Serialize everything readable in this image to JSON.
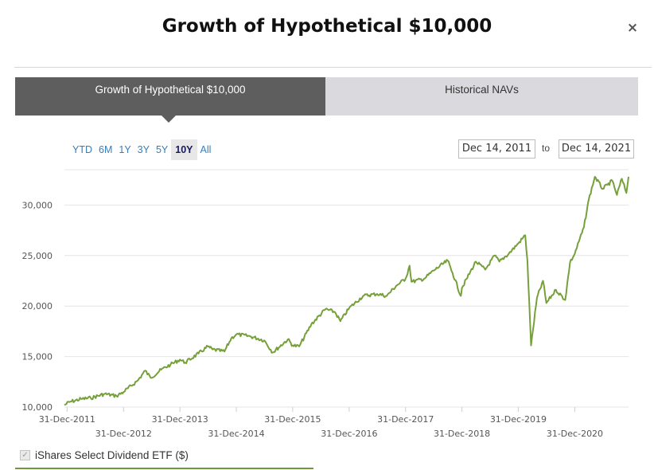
{
  "modal": {
    "title": "Growth of Hypothetical $10,000",
    "close_symbol": "×"
  },
  "tabs": [
    {
      "label": "Growth of Hypothetical $10,000",
      "active": true
    },
    {
      "label": "Historical NAVs",
      "active": false
    }
  ],
  "ranges": [
    "YTD",
    "6M",
    "1Y",
    "3Y",
    "5Y",
    "10Y",
    "All"
  ],
  "active_range": "10Y",
  "date_range": {
    "from": "Dec 14, 2011",
    "to_label": "to",
    "to": "Dec 14, 2021"
  },
  "legend": {
    "label": "iShares Select Dividend ETF ($)",
    "checked": true
  },
  "chart_data": {
    "type": "line",
    "x_axis_type": "date",
    "xlim": [
      "2011-12-14",
      "2021-12-14"
    ],
    "ylim": [
      10000,
      33500
    ],
    "grid": true,
    "y_ticks": [
      10000,
      15000,
      20000,
      25000,
      30000
    ],
    "y_tick_labels": [
      "10,000",
      "15,000",
      "20,000",
      "25,000",
      "30,000"
    ],
    "x_ticks": [
      "2011-12-31",
      "2012-12-31",
      "2013-12-31",
      "2014-12-31",
      "2015-12-31",
      "2016-12-31",
      "2017-12-31",
      "2018-12-31",
      "2019-12-31",
      "2020-12-31"
    ],
    "x_tick_labels": [
      "31-Dec-2011",
      "31-Dec-2012",
      "31-Dec-2013",
      "31-Dec-2014",
      "31-Dec-2015",
      "31-Dec-2016",
      "31-Dec-2017",
      "31-Dec-2018",
      "31-Dec-2019",
      "31-Dec-2020"
    ],
    "line_color": "#76a03a",
    "series": [
      {
        "name": "iShares Select Dividend ETF ($)",
        "points": [
          [
            "2011-12-14",
            10200
          ],
          [
            "2012-01-15",
            10500
          ],
          [
            "2012-03-31",
            10800
          ],
          [
            "2012-06-01",
            10900
          ],
          [
            "2012-08-31",
            11300
          ],
          [
            "2012-11-15",
            11100
          ],
          [
            "2012-12-31",
            11500
          ],
          [
            "2013-03-31",
            12600
          ],
          [
            "2013-05-20",
            13600
          ],
          [
            "2013-06-24",
            12900
          ],
          [
            "2013-08-31",
            13700
          ],
          [
            "2013-10-31",
            14200
          ],
          [
            "2013-12-31",
            14700
          ],
          [
            "2014-02-03",
            14400
          ],
          [
            "2014-04-30",
            15300
          ],
          [
            "2014-06-30",
            16000
          ],
          [
            "2014-07-31",
            15700
          ],
          [
            "2014-10-15",
            15500
          ],
          [
            "2014-11-28",
            16800
          ],
          [
            "2014-12-31",
            17200
          ],
          [
            "2015-03-31",
            17000
          ],
          [
            "2015-06-30",
            16600
          ],
          [
            "2015-08-24",
            15400
          ],
          [
            "2015-11-30",
            16700
          ],
          [
            "2015-12-31",
            16100
          ],
          [
            "2016-02-11",
            16000
          ],
          [
            "2016-04-30",
            18200
          ],
          [
            "2016-07-31",
            19700
          ],
          [
            "2016-09-30",
            19400
          ],
          [
            "2016-11-04",
            18500
          ],
          [
            "2016-12-31",
            19800
          ],
          [
            "2017-03-31",
            21000
          ],
          [
            "2017-06-30",
            21200
          ],
          [
            "2017-08-31",
            21000
          ],
          [
            "2017-10-31",
            22000
          ],
          [
            "2017-12-31",
            22700
          ],
          [
            "2018-01-26",
            24000
          ],
          [
            "2018-02-08",
            22400
          ],
          [
            "2018-04-30",
            22700
          ],
          [
            "2018-06-30",
            23500
          ],
          [
            "2018-09-30",
            24500
          ],
          [
            "2018-10-31",
            23300
          ],
          [
            "2018-12-24",
            21000
          ],
          [
            "2018-12-31",
            21800
          ],
          [
            "2019-03-31",
            24400
          ],
          [
            "2019-05-31",
            23600
          ],
          [
            "2019-07-31",
            25000
          ],
          [
            "2019-08-31",
            24400
          ],
          [
            "2019-10-31",
            25200
          ],
          [
            "2019-12-31",
            26200
          ],
          [
            "2020-02-14",
            27000
          ],
          [
            "2020-02-28",
            24500
          ],
          [
            "2020-03-23",
            16100
          ],
          [
            "2020-04-30",
            20800
          ],
          [
            "2020-06-08",
            22500
          ],
          [
            "2020-06-30",
            20300
          ],
          [
            "2020-08-31",
            21600
          ],
          [
            "2020-10-30",
            20600
          ],
          [
            "2020-11-30",
            24300
          ],
          [
            "2020-12-31",
            25200
          ],
          [
            "2021-02-28",
            27800
          ],
          [
            "2021-03-31",
            30500
          ],
          [
            "2021-05-10",
            32800
          ],
          [
            "2021-06-30",
            31600
          ],
          [
            "2021-07-31",
            32000
          ],
          [
            "2021-08-31",
            32400
          ],
          [
            "2021-09-30",
            31000
          ],
          [
            "2021-10-31",
            32600
          ],
          [
            "2021-11-30",
            31200
          ],
          [
            "2021-12-14",
            32800
          ]
        ]
      }
    ]
  }
}
